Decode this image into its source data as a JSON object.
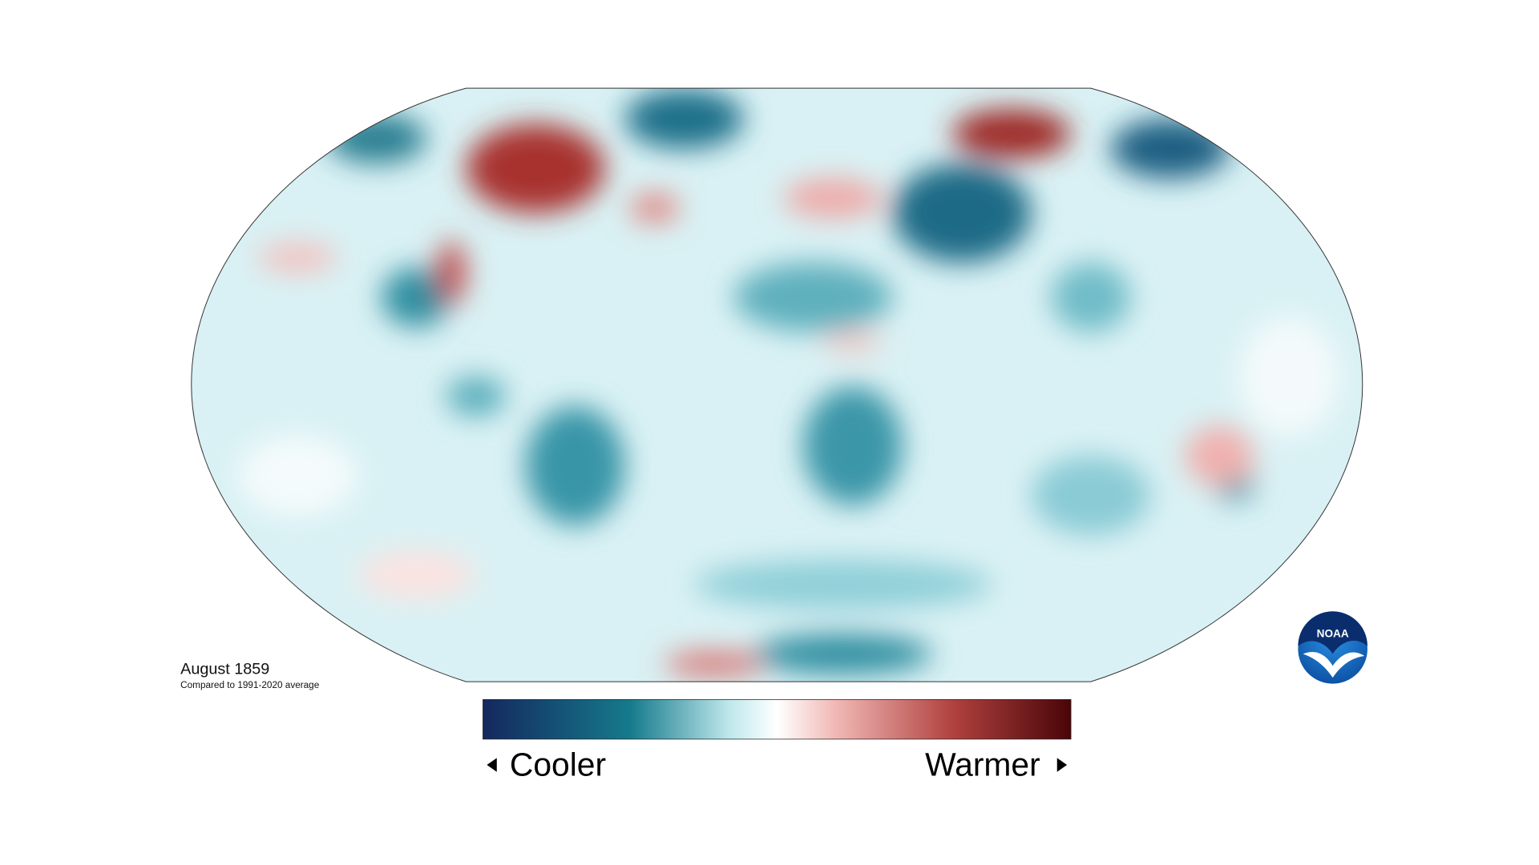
{
  "title": "August 1859",
  "subtitle": "Compared to 1991-2020 average",
  "legend": {
    "low": "Cooler",
    "high": "Warmer"
  },
  "logo": "NOAA"
}
